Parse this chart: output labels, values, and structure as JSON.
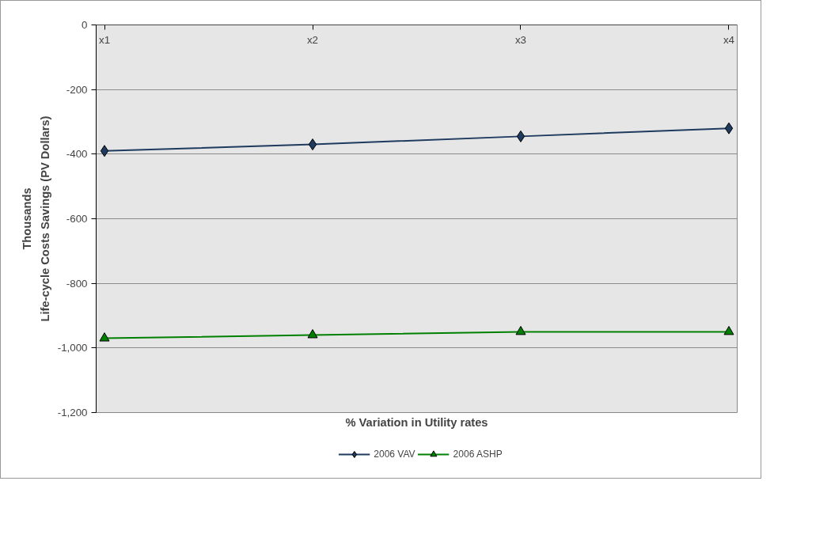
{
  "chart_data": {
    "type": "line",
    "categories": [
      "x1",
      "x2",
      "x3",
      "x4"
    ],
    "xlabel": "% Variation in Utility rates",
    "ylabel": "Life-cycle Costs Savings (PV Dollars)",
    "annotations": [
      "Thousands"
    ],
    "ylim": [
      -1200,
      0
    ],
    "yticks": [
      {
        "value": -1200,
        "label": "-1,200"
      },
      {
        "value": -1000,
        "label": "-1,000"
      },
      -800,
      -600,
      -400,
      -200,
      0
    ],
    "grid": "y",
    "legend": "bottom",
    "series": [
      {
        "name": "2006 VAV",
        "color": "#1f3a5f",
        "marker": "diamond",
        "values": [
          -390,
          -370,
          -345,
          -320
        ]
      },
      {
        "name": "2006 ASHP",
        "color": "#008000",
        "marker": "triangle",
        "values": [
          -970,
          -960,
          -950,
          -950
        ]
      }
    ]
  }
}
